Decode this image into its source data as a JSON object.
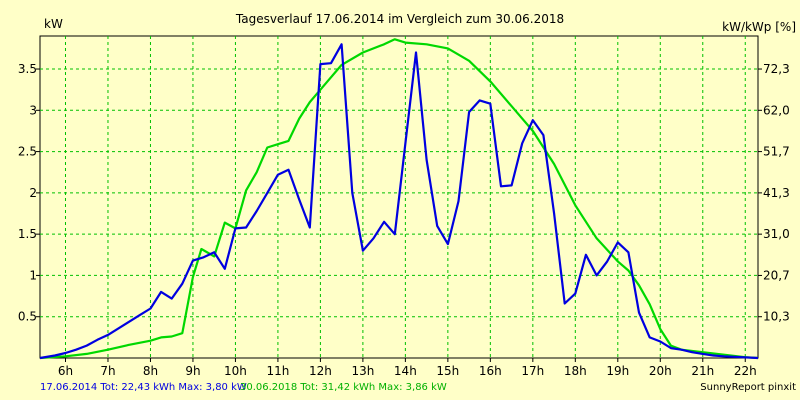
{
  "chart_data": {
    "type": "line",
    "title": "Tagesverlauf 17.06.2014 im Vergleich zum 30.06.2018",
    "y_left_label": "kW",
    "y_right_label": "kW/kWp [%]",
    "xlim": [
      5.4,
      22.3
    ],
    "ylim": [
      0,
      3.9
    ],
    "x_ticks": [
      6,
      7,
      8,
      9,
      10,
      11,
      12,
      13,
      14,
      15,
      16,
      17,
      18,
      19,
      20,
      21,
      22
    ],
    "x_tick_labels": [
      "6h",
      "7h",
      "8h",
      "9h",
      "10h",
      "11h",
      "12h",
      "13h",
      "14h",
      "15h",
      "16h",
      "17h",
      "18h",
      "19h",
      "20h",
      "21h",
      "22h"
    ],
    "y_ticks": [
      0.5,
      1,
      1.5,
      2,
      2.5,
      3,
      3.5
    ],
    "y_tick_labels": [
      "0.5",
      "1",
      "1.5",
      "2",
      "2.5",
      "3",
      "3.5"
    ],
    "y_right_ticks": [
      {
        "value": 0.5,
        "label": "10,3"
      },
      {
        "value": 1.0,
        "label": "20,7"
      },
      {
        "value": 1.5,
        "label": "31,0"
      },
      {
        "value": 2.0,
        "label": "41,3"
      },
      {
        "value": 2.5,
        "label": "51,7"
      },
      {
        "value": 3.0,
        "label": "62,0"
      },
      {
        "value": 3.5,
        "label": "72,3"
      }
    ],
    "grid": true,
    "series": [
      {
        "name": "17.06.2014",
        "color": "#0000E0",
        "x": [
          5.4,
          5.75,
          6.0,
          6.25,
          6.5,
          6.75,
          7.0,
          7.25,
          7.5,
          7.75,
          8.0,
          8.25,
          8.5,
          8.75,
          9.0,
          9.25,
          9.5,
          9.75,
          10.0,
          10.25,
          10.5,
          10.75,
          11.0,
          11.25,
          11.5,
          11.75,
          12.0,
          12.25,
          12.5,
          12.75,
          13.0,
          13.25,
          13.5,
          13.75,
          14.0,
          14.25,
          14.5,
          14.75,
          15.0,
          15.25,
          15.5,
          15.75,
          16.0,
          16.25,
          16.5,
          16.75,
          17.0,
          17.25,
          17.5,
          17.75,
          18.0,
          18.25,
          18.5,
          18.75,
          19.0,
          19.25,
          19.5,
          19.75,
          20.0,
          20.25,
          20.5,
          20.75,
          21.0,
          21.25,
          21.5,
          22.3
        ],
        "y": [
          0.0,
          0.03,
          0.06,
          0.1,
          0.15,
          0.22,
          0.28,
          0.36,
          0.44,
          0.52,
          0.6,
          0.8,
          0.72,
          0.9,
          1.18,
          1.22,
          1.28,
          1.08,
          1.57,
          1.58,
          1.78,
          2.0,
          2.22,
          2.28,
          1.92,
          1.58,
          3.56,
          3.57,
          3.8,
          2.0,
          1.3,
          1.45,
          1.65,
          1.5,
          2.6,
          3.7,
          2.4,
          1.6,
          1.38,
          1.9,
          2.98,
          3.12,
          3.08,
          2.08,
          2.09,
          2.6,
          2.88,
          2.7,
          1.75,
          0.66,
          0.78,
          1.25,
          1.0,
          1.17,
          1.4,
          1.28,
          0.55,
          0.25,
          0.2,
          0.12,
          0.1,
          0.07,
          0.05,
          0.03,
          0.02,
          0.0
        ]
      },
      {
        "name": "30.06.2018",
        "color": "#00D800",
        "x": [
          5.4,
          6.0,
          6.5,
          7.0,
          7.5,
          8.0,
          8.25,
          8.5,
          8.75,
          9.0,
          9.2,
          9.5,
          9.75,
          10.0,
          10.25,
          10.5,
          10.75,
          11.0,
          11.25,
          11.5,
          11.75,
          12.0,
          12.5,
          13.0,
          13.5,
          13.75,
          14.0,
          14.5,
          15.0,
          15.5,
          16.0,
          16.5,
          17.0,
          17.5,
          18.0,
          18.5,
          19.0,
          19.25,
          19.5,
          19.75,
          20.0,
          20.25,
          20.5,
          21.0,
          21.5,
          22.0,
          22.3
        ],
        "y": [
          0.0,
          0.02,
          0.05,
          0.1,
          0.16,
          0.21,
          0.25,
          0.26,
          0.3,
          0.98,
          1.32,
          1.23,
          1.64,
          1.57,
          2.03,
          2.25,
          2.55,
          2.59,
          2.63,
          2.9,
          3.1,
          3.25,
          3.55,
          3.7,
          3.8,
          3.86,
          3.82,
          3.8,
          3.75,
          3.6,
          3.35,
          3.05,
          2.75,
          2.35,
          1.85,
          1.45,
          1.17,
          1.06,
          0.88,
          0.65,
          0.35,
          0.15,
          0.1,
          0.07,
          0.04,
          0.01,
          0.0
        ]
      }
    ]
  },
  "footer": {
    "series1_text": "17.06.2014 Tot: 22,43 kWh Max: 3,80 kW",
    "series1_color": "#0000E0",
    "series2_text": "30.06.2018 Tot: 31,42 kWh Max: 3,86 kW",
    "series2_color": "#00B000",
    "credit": "SunnyReport pinxit"
  }
}
